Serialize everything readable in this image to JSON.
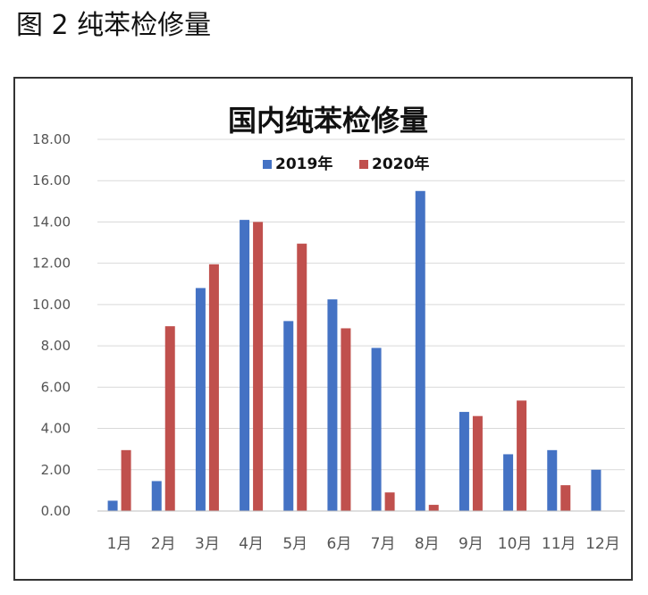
{
  "figure_caption": "图 2  纯苯检修量",
  "chart_data": {
    "type": "bar",
    "title": "国内纯苯检修量",
    "categories": [
      "1月",
      "2月",
      "3月",
      "4月",
      "5月",
      "6月",
      "7月",
      "8月",
      "9月",
      "10月",
      "11月",
      "12月"
    ],
    "series": [
      {
        "name": "2019年",
        "color": "#4472c4",
        "values": [
          0.5,
          1.45,
          10.8,
          14.1,
          9.2,
          10.25,
          7.9,
          15.5,
          4.8,
          2.75,
          2.95,
          2.0
        ]
      },
      {
        "name": "2020年",
        "color": "#c0504d",
        "values": [
          2.95,
          8.95,
          11.95,
          14.0,
          12.95,
          8.85,
          0.9,
          0.3,
          4.6,
          5.35,
          1.25,
          null
        ]
      }
    ],
    "ylim": [
      0,
      18
    ],
    "yticks": [
      "0.00",
      "2.00",
      "4.00",
      "6.00",
      "8.00",
      "10.00",
      "12.00",
      "14.00",
      "16.00",
      "18.00"
    ],
    "xlabel": "",
    "ylabel": "",
    "grid": true,
    "legend": "top-center"
  }
}
